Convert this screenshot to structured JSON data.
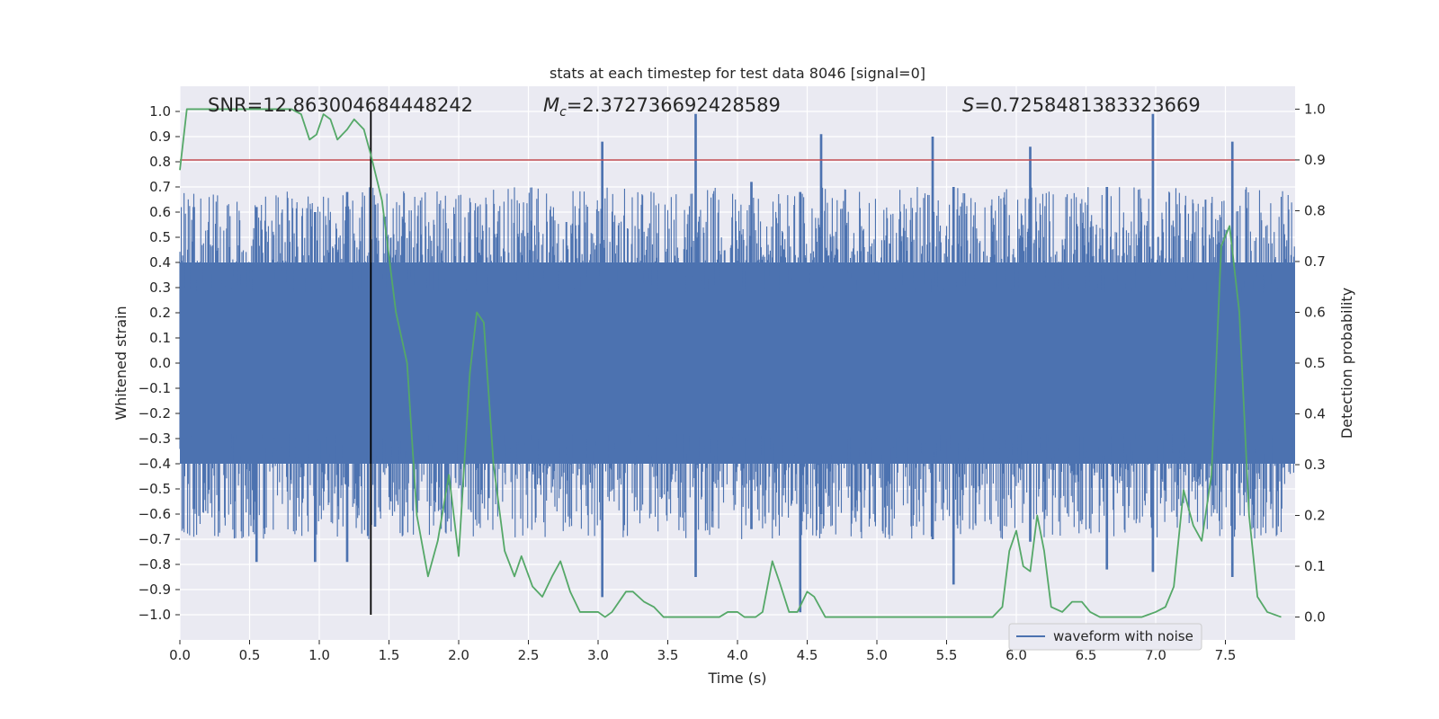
{
  "chart_data": {
    "type": "line",
    "title": "stats at each timestep for test data 8046 [signal=0]",
    "xlabel": "Time (s)",
    "ylabel": "Whitened strain",
    "y2label": "Detection probability",
    "xlim": [
      0.0,
      8.0
    ],
    "ylim": [
      -1.1,
      1.1
    ],
    "y2lim": [
      -0.045,
      1.045
    ],
    "grid": true,
    "x_ticks": [
      "0.0",
      "0.5",
      "1.0",
      "1.5",
      "2.0",
      "2.5",
      "3.0",
      "3.5",
      "4.0",
      "4.5",
      "5.0",
      "5.5",
      "6.0",
      "6.5",
      "7.0",
      "7.5"
    ],
    "y_ticks": [
      "1.0",
      "0.9",
      "0.8",
      "0.7",
      "0.6",
      "0.5",
      "0.4",
      "0.3",
      "0.2",
      "0.1",
      "0.0",
      "−0.1",
      "−0.2",
      "−0.3",
      "−0.4",
      "−0.5",
      "−0.6",
      "−0.7",
      "−0.8",
      "−0.9",
      "−1.0"
    ],
    "y2_ticks": [
      "1.0",
      "0.9",
      "0.8",
      "0.7",
      "0.6",
      "0.5",
      "0.4",
      "0.3",
      "0.2",
      "0.1",
      "0.0"
    ],
    "annotations": {
      "snr": "SNR=12.863004684448242",
      "mc_symbol": "M",
      "mc_sub": "c",
      "mc_value": "=2.372736692428589",
      "s_symbol": "S",
      "s_value": "=0.7258481383323669"
    },
    "legend": {
      "label": "waveform with noise",
      "position": "lower-right"
    },
    "threshold_line": {
      "y2": 0.9,
      "color": "#c44e52"
    },
    "marker_line": {
      "x": 1.37,
      "color": "#000000"
    },
    "series": [
      {
        "name": "waveform with noise",
        "color": "#4c72b0",
        "kind": "whitened strain waveform (dense noise)",
        "peaks": [
          {
            "x": 0.1,
            "max": 0.62,
            "min": -0.58
          },
          {
            "x": 0.55,
            "max": 0.62,
            "min": -0.79
          },
          {
            "x": 0.97,
            "max": 0.6,
            "min": -0.79
          },
          {
            "x": 1.2,
            "max": 0.68,
            "min": -0.79
          },
          {
            "x": 1.4,
            "max": 0.63,
            "min": -0.65
          },
          {
            "x": 3.03,
            "max": 0.88,
            "min": -0.93
          },
          {
            "x": 3.7,
            "max": 0.99,
            "min": -0.85
          },
          {
            "x": 4.1,
            "max": 0.72,
            "min": -0.66
          },
          {
            "x": 4.45,
            "max": 0.68,
            "min": -0.99
          },
          {
            "x": 4.6,
            "max": 0.91,
            "min": -0.6
          },
          {
            "x": 5.4,
            "max": 0.9,
            "min": -0.7
          },
          {
            "x": 5.55,
            "max": 0.7,
            "min": -0.88
          },
          {
            "x": 6.1,
            "max": 0.86,
            "min": -0.71
          },
          {
            "x": 6.65,
            "max": 0.7,
            "min": -0.82
          },
          {
            "x": 6.98,
            "max": 0.99,
            "min": -0.83
          },
          {
            "x": 7.55,
            "max": 0.88,
            "min": -0.85
          }
        ]
      },
      {
        "name": "",
        "color": "#55a868",
        "axis": "right",
        "x": [
          0.0,
          0.05,
          0.1,
          0.2,
          0.3,
          0.4,
          0.5,
          0.6,
          0.7,
          0.8,
          0.87,
          0.93,
          0.98,
          1.03,
          1.08,
          1.13,
          1.2,
          1.25,
          1.32,
          1.37,
          1.45,
          1.55,
          1.63,
          1.7,
          1.78,
          1.85,
          1.93,
          2.0,
          2.08,
          2.13,
          2.18,
          2.25,
          2.33,
          2.4,
          2.45,
          2.53,
          2.6,
          2.67,
          2.73,
          2.8,
          2.87,
          2.93,
          3.0,
          3.05,
          3.1,
          3.2,
          3.25,
          3.33,
          3.4,
          3.47,
          3.53,
          3.6,
          3.67,
          3.73,
          3.8,
          3.87,
          3.93,
          4.0,
          4.05,
          4.13,
          4.18,
          4.25,
          4.3,
          4.37,
          4.43,
          4.5,
          4.55,
          4.63,
          4.7,
          4.8,
          4.9,
          5.0,
          5.2,
          5.5,
          5.7,
          5.83,
          5.9,
          5.95,
          6.0,
          6.05,
          6.1,
          6.15,
          6.2,
          6.25,
          6.33,
          6.4,
          6.47,
          6.53,
          6.6,
          6.7,
          6.8,
          6.9,
          7.0,
          7.07,
          7.13,
          7.2,
          7.27,
          7.33,
          7.4,
          7.47,
          7.53,
          7.6,
          7.67,
          7.73,
          7.8,
          7.9
        ],
        "values": [
          0.88,
          1.0,
          1.0,
          1.0,
          1.0,
          1.0,
          1.0,
          1.0,
          1.0,
          1.0,
          0.99,
          0.94,
          0.95,
          0.99,
          0.98,
          0.94,
          0.96,
          0.98,
          0.96,
          0.91,
          0.82,
          0.6,
          0.5,
          0.2,
          0.08,
          0.15,
          0.28,
          0.12,
          0.48,
          0.6,
          0.58,
          0.3,
          0.13,
          0.08,
          0.12,
          0.06,
          0.04,
          0.08,
          0.11,
          0.05,
          0.01,
          0.01,
          0.01,
          0.0,
          0.01,
          0.05,
          0.05,
          0.03,
          0.02,
          0.0,
          0.0,
          0.0,
          0.0,
          0.0,
          0.0,
          0.0,
          0.01,
          0.01,
          0.0,
          0.0,
          0.01,
          0.11,
          0.07,
          0.01,
          0.01,
          0.05,
          0.04,
          0.0,
          0.0,
          0.0,
          0.0,
          0.0,
          0.0,
          0.0,
          0.0,
          0.0,
          0.02,
          0.13,
          0.17,
          0.1,
          0.09,
          0.2,
          0.13,
          0.02,
          0.01,
          0.03,
          0.03,
          0.01,
          0.0,
          0.0,
          0.0,
          0.0,
          0.01,
          0.02,
          0.06,
          0.25,
          0.18,
          0.15,
          0.28,
          0.73,
          0.77,
          0.6,
          0.2,
          0.04,
          0.01,
          0.0
        ]
      }
    ]
  }
}
